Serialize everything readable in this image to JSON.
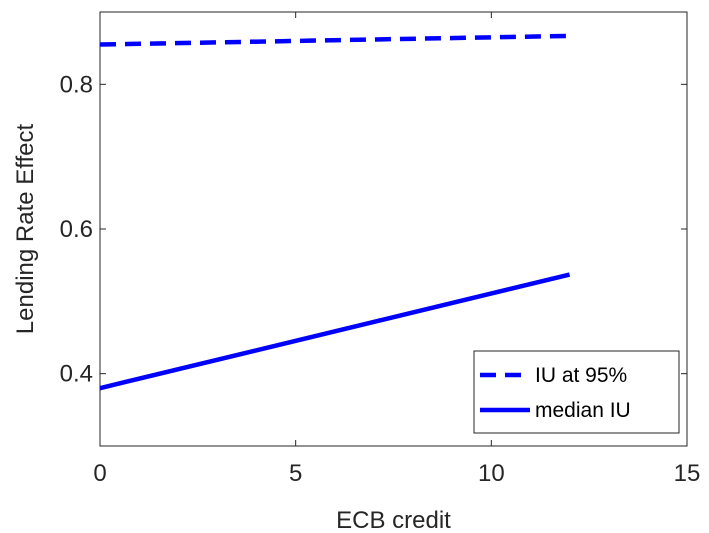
{
  "chart_data": {
    "type": "line",
    "title": "",
    "xlabel": "ECB credit",
    "ylabel": "Lending Rate Effect",
    "xlim": [
      0,
      15
    ],
    "ylim": [
      0.3,
      0.9
    ],
    "xticks": [
      0,
      5,
      10,
      15
    ],
    "xtick_labels": [
      "0",
      "5",
      "10",
      "15"
    ],
    "yticks": [
      0.4,
      0.6,
      0.8
    ],
    "ytick_labels": [
      "0.4",
      "0.6",
      "0.8"
    ],
    "grid": false,
    "legend_position": "bottom-right",
    "series": [
      {
        "name": "IU at 95%",
        "style": "dashed",
        "color": "#0000ff",
        "x": [
          0,
          12
        ],
        "y": [
          0.855,
          0.867
        ]
      },
      {
        "name": "median IU",
        "style": "solid",
        "color": "#0000ff",
        "x": [
          0,
          12
        ],
        "y": [
          0.38,
          0.537
        ]
      }
    ]
  }
}
